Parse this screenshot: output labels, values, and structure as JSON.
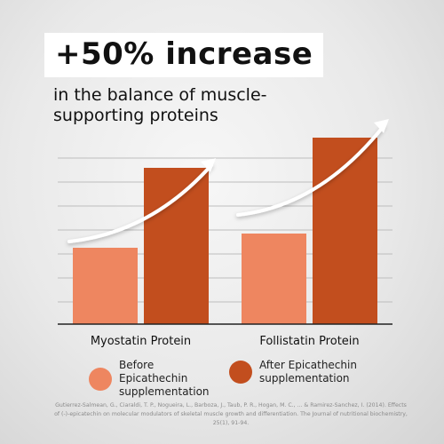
{
  "header": {
    "headline": "+50% increase",
    "subtitle": "in the balance of muscle-supporting proteins"
  },
  "colors": {
    "before": "#ee8660",
    "after": "#c24e1e",
    "gridline": "#bdbdbd",
    "arrow": "#ffffff"
  },
  "legend": [
    {
      "name": "Before Epicathechin supplementation",
      "color": "#ee8660"
    },
    {
      "name": "After Epicathechin supplementation",
      "color": "#c24e1e"
    }
  ],
  "chart_data": {
    "type": "bar",
    "categories": [
      "Myostatin Protein",
      "Follistatin Protein"
    ],
    "series": [
      {
        "name": "Before Epicathechin supplementation",
        "values": [
          43,
          51
        ]
      },
      {
        "name": "After Epicathechin supplementation",
        "values": [
          88,
          105
        ]
      }
    ],
    "ylim": [
      0,
      110
    ],
    "grid": true,
    "legend_position": "bottom"
  },
  "citation": "Gutierrez-Salmean, G., Ciaraldi, T. P., Nogueira, L., Barboza, J., Taub, P. R., Hogan, M. C., ... & Ramirez-Sanchez, I. (2014). Effects of (-)-epicatechin on molecular modulators of skeletal muscle growth and differentiation. The Journal of nutritional biochemistry, 25(1), 91-94."
}
